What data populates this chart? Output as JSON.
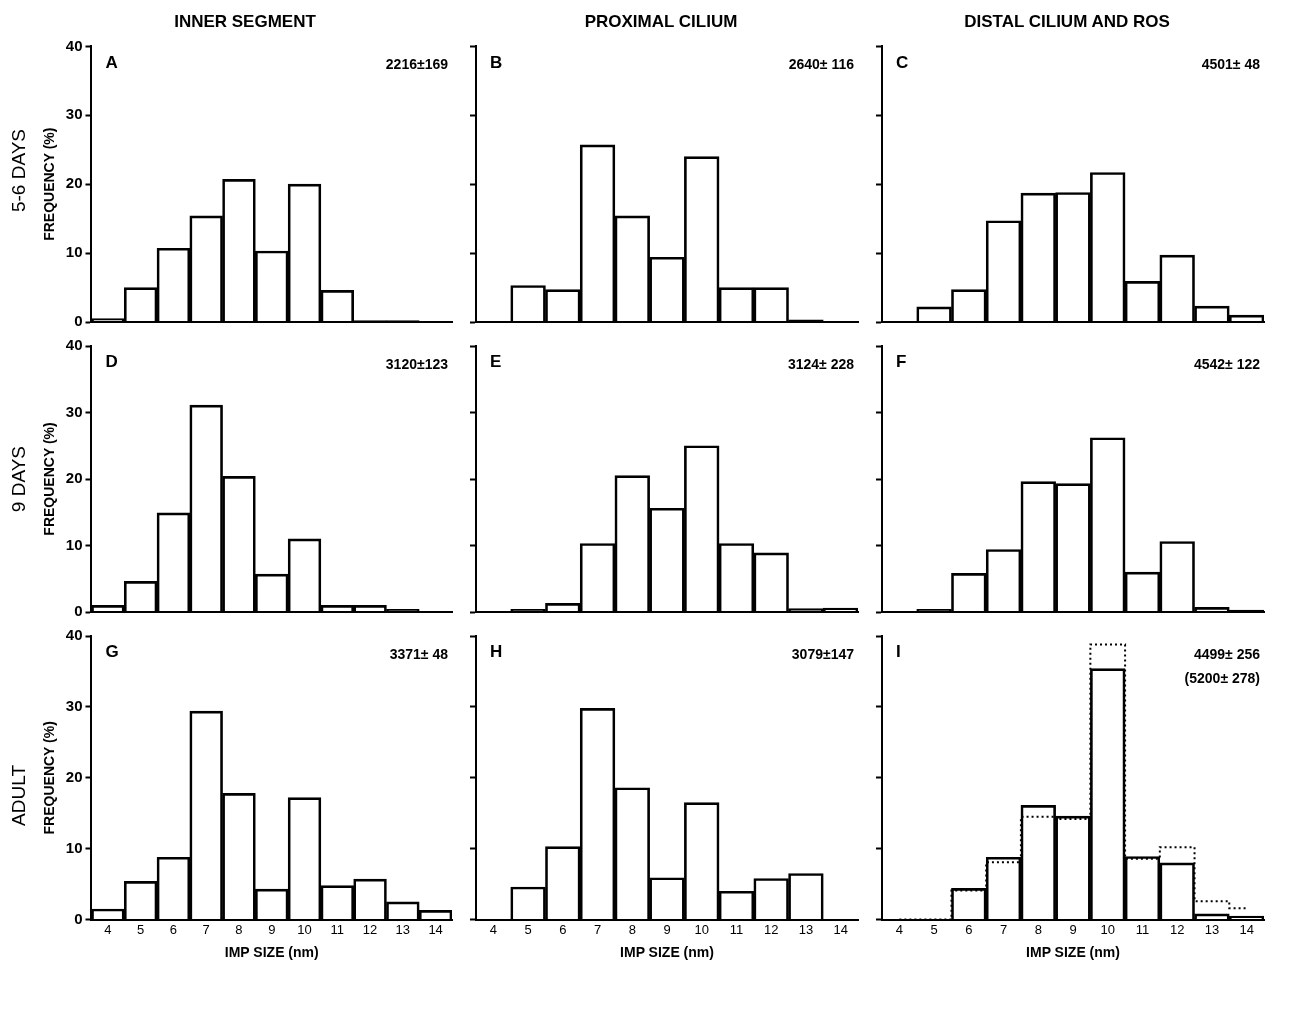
{
  "chart_data": [
    {
      "type": "bar",
      "title": "INNER SEGMENT",
      "subtitle": "5-6 DAYS",
      "ylabel": "FREQUENCY (%)",
      "categories": [
        "4",
        "5",
        "6",
        "7",
        "8",
        "9",
        "10",
        "11",
        "12",
        "13",
        "14"
      ],
      "values": [
        0.5,
        5,
        10.7,
        15.4,
        20.7,
        10.3,
        20,
        4.6,
        0.2,
        0.2,
        0
      ],
      "color": "#000000",
      "ylim": [
        0,
        40
      ],
      "yticks": [
        0,
        10,
        20,
        30,
        40
      ],
      "grid": false,
      "tick_labels": "y",
      "annotations": [
        "A",
        "2216±169"
      ]
    },
    {
      "type": "bar",
      "title": "PROXIMAL CILIUM",
      "categories": [
        "4",
        "5",
        "6",
        "7",
        "8",
        "9",
        "10",
        "11",
        "12",
        "13",
        "14"
      ],
      "values": [
        0,
        5.3,
        4.7,
        25.7,
        15.4,
        9.4,
        24,
        5,
        5,
        0.3,
        0
      ],
      "color": "#000000",
      "ylim": [
        0,
        40
      ],
      "yticks": [
        {
          "value": 0,
          "label": null
        },
        {
          "value": 10,
          "label": null
        },
        {
          "value": 20,
          "label": null
        },
        {
          "value": 30,
          "label": null
        },
        {
          "value": 40,
          "label": null
        }
      ],
      "grid": false,
      "tick_labels": false,
      "annotations": [
        "B",
        "2640± 116"
      ]
    },
    {
      "type": "bar",
      "title": "DISTAL CILIUM AND ROS",
      "categories": [
        "4",
        "5",
        "6",
        "7",
        "8",
        "9",
        "10",
        "11",
        "12",
        "13",
        "14"
      ],
      "values": [
        0,
        2.2,
        4.7,
        14.7,
        18.7,
        18.8,
        21.7,
        5.9,
        9.7,
        2.3,
        1.0
      ],
      "color": "#000000",
      "ylim": [
        0,
        40
      ],
      "yticks": [
        {
          "value": 0,
          "label": null
        },
        {
          "value": 10,
          "label": null
        },
        {
          "value": 20,
          "label": null
        },
        {
          "value": 30,
          "label": null
        },
        {
          "value": 40,
          "label": null
        }
      ],
      "grid": false,
      "tick_labels": false,
      "annotations": [
        "C",
        "4501± 48"
      ]
    },
    {
      "type": "bar",
      "subtitle": "9 DAYS",
      "ylabel": "FREQUENCY (%)",
      "categories": [
        "4",
        "5",
        "6",
        "7",
        "8",
        "9",
        "10",
        "11",
        "12",
        "13",
        "14"
      ],
      "values": [
        1.0,
        4.6,
        14.9,
        31.1,
        20.4,
        5.7,
        11.0,
        1.0,
        1.0,
        0.4,
        0
      ],
      "color": "#000000",
      "ylim": [
        0,
        40
      ],
      "yticks": [
        0,
        10,
        20,
        30,
        40
      ],
      "grid": false,
      "tick_labels": "y",
      "annotations": [
        "D",
        "3120±123"
      ]
    },
    {
      "type": "bar",
      "categories": [
        "4",
        "5",
        "6",
        "7",
        "8",
        "9",
        "10",
        "11",
        "12",
        "13",
        "14"
      ],
      "values": [
        0,
        0.4,
        1.3,
        10.3,
        20.5,
        15.6,
        25,
        10.3,
        8.9,
        0.5,
        0.6
      ],
      "color": "#000000",
      "ylim": [
        0,
        40
      ],
      "yticks": [
        {
          "value": 0,
          "label": null
        },
        {
          "value": 10,
          "label": null
        },
        {
          "value": 20,
          "label": null
        },
        {
          "value": 30,
          "label": null
        },
        {
          "value": 40,
          "label": null
        }
      ],
      "grid": false,
      "tick_labels": false,
      "annotations": [
        "E",
        "3124± 228"
      ]
    },
    {
      "type": "bar",
      "categories": [
        "4",
        "5",
        "6",
        "7",
        "8",
        "9",
        "10",
        "11",
        "12",
        "13",
        "14"
      ],
      "values": [
        0,
        0.4,
        5.8,
        9.4,
        19.6,
        19.3,
        26.2,
        6.0,
        10.6,
        0.7,
        0.3
      ],
      "color": "#000000",
      "ylim": [
        0,
        40
      ],
      "yticks": [
        {
          "value": 0,
          "label": null
        },
        {
          "value": 10,
          "label": null
        },
        {
          "value": 20,
          "label": null
        },
        {
          "value": 30,
          "label": null
        },
        {
          "value": 40,
          "label": null
        }
      ],
      "grid": false,
      "tick_labels": false,
      "annotations": [
        "F",
        "4542± 122"
      ]
    },
    {
      "type": "bar",
      "subtitle": "ADULT",
      "ylabel": "FREQUENCY (%)",
      "xlabel": "IMP SIZE (nm)",
      "categories": [
        "4",
        "5",
        "6",
        "7",
        "8",
        "9",
        "10",
        "11",
        "12",
        "13",
        "14"
      ],
      "values": [
        1.5,
        5.4,
        8.8,
        29.4,
        17.8,
        4.3,
        17.2,
        4.8,
        5.7,
        2.5,
        1.3
      ],
      "color": "#000000",
      "ylim": [
        0,
        40
      ],
      "yticks": [
        0,
        10,
        20,
        30,
        40
      ],
      "grid": false,
      "annotations": [
        "G",
        "3371± 48"
      ]
    },
    {
      "type": "bar",
      "xlabel": "IMP SIZE (nm)",
      "categories": [
        "4",
        "5",
        "6",
        "7",
        "8",
        "9",
        "10",
        "11",
        "12",
        "13",
        "14"
      ],
      "values": [
        0,
        4.6,
        10.3,
        29.8,
        18.6,
        5.9,
        16.5,
        4.0,
        5.8,
        6.5,
        0
      ],
      "color": "#000000",
      "ylim": [
        0,
        40
      ],
      "yticks": [
        {
          "value": 0,
          "label": null
        },
        {
          "value": 10,
          "label": null
        },
        {
          "value": 20,
          "label": null
        },
        {
          "value": 30,
          "label": null
        },
        {
          "value": 40,
          "label": null
        }
      ],
      "grid": false,
      "tick_labels": "x",
      "annotations": [
        "H",
        "3079±147"
      ]
    },
    {
      "type": "bar",
      "xlabel": "IMP SIZE (nm)",
      "categories": [
        "4",
        "5",
        "6",
        "7",
        "8",
        "9",
        "10",
        "11",
        "12",
        "13",
        "14"
      ],
      "series": [
        {
          "color": "#000000",
          "values": [
            0,
            0,
            4.4,
            8.8,
            16.1,
            14.6,
            35.4,
            8.9,
            8.0,
            0.8,
            0.5
          ]
        },
        {
          "type": "step",
          "line_style": "dotted",
          "color": "#000000",
          "values": [
            0,
            0,
            4.1,
            8.1,
            14.5,
            14.2,
            38.8,
            8.6,
            10.2,
            2.6,
            1.6
          ]
        }
      ],
      "ylim": [
        0,
        40
      ],
      "yticks": [
        {
          "value": 0,
          "label": null
        },
        {
          "value": 10,
          "label": null
        },
        {
          "value": 20,
          "label": null
        },
        {
          "value": 30,
          "label": null
        },
        {
          "value": 40,
          "label": null
        }
      ],
      "grid": false,
      "tick_labels": "x",
      "annotations": [
        "I",
        "4499± 256",
        "(5200± 278)"
      ]
    }
  ]
}
